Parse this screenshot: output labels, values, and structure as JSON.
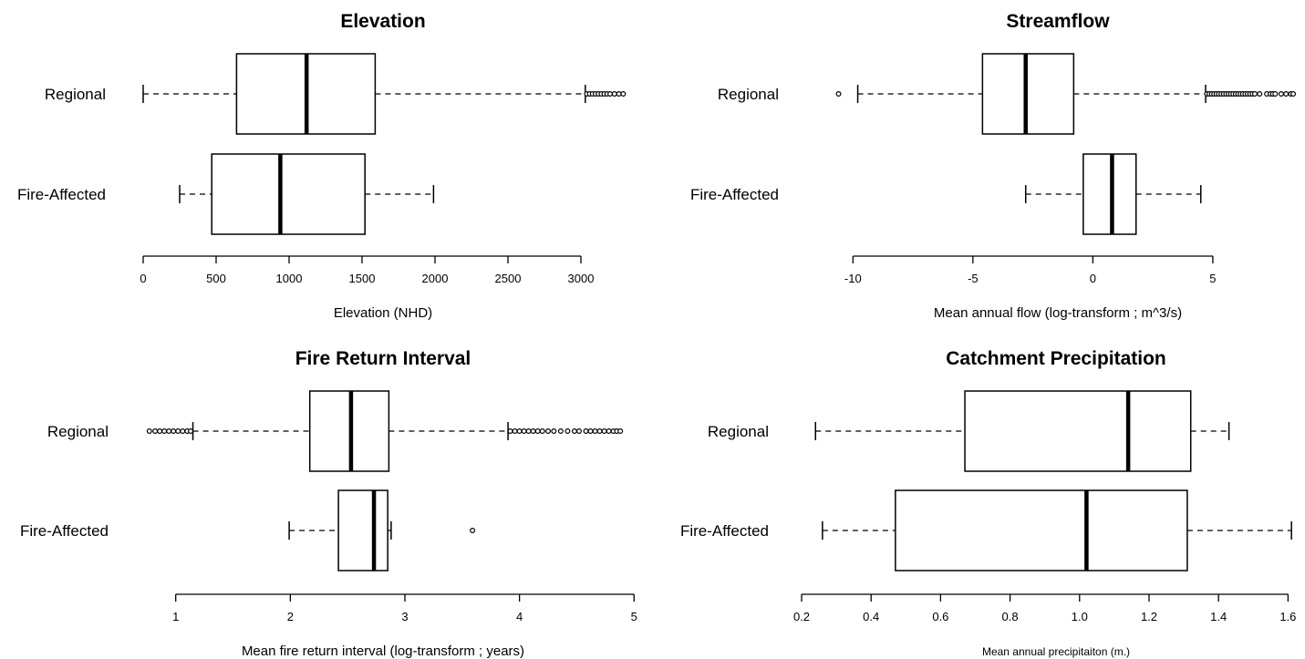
{
  "chart_data": [
    {
      "type": "boxplot",
      "orientation": "horizontal",
      "title": "Elevation",
      "xlabel": "Elevation (NHD)",
      "ylabel": "",
      "xlim": [
        0,
        3300
      ],
      "x_ticks": [
        0,
        500,
        1000,
        1500,
        2000,
        2500,
        3000
      ],
      "x_tick_labels": [
        "0",
        "500",
        "1000",
        "1500",
        "2000",
        "2500",
        "3000"
      ],
      "categories": [
        "Regional",
        "Fire-Affected"
      ],
      "series": [
        {
          "name": "Regional",
          "whisker_low": 0,
          "q1": 640,
          "median": 1120,
          "q3": 1590,
          "whisker_high": 3030,
          "outliers": [
            3040,
            3060,
            3080,
            3100,
            3120,
            3140,
            3160,
            3180,
            3200,
            3230,
            3260,
            3290
          ]
        },
        {
          "name": "Fire-Affected",
          "whisker_low": 250,
          "q1": 470,
          "median": 940,
          "q3": 1520,
          "whisker_high": 1990,
          "outliers": []
        }
      ]
    },
    {
      "type": "boxplot",
      "orientation": "horizontal",
      "title": "Streamflow",
      "xlabel": "Mean annual flow (log-transform ; m^3/s)",
      "ylabel": "",
      "xlim": [
        -11,
        8.5
      ],
      "x_ticks": [
        -10,
        -5,
        0,
        5
      ],
      "x_tick_labels": [
        "-10",
        "-5",
        "0",
        "5"
      ],
      "categories": [
        "Regional",
        "Fire-Affected"
      ],
      "series": [
        {
          "name": "Regional",
          "whisker_low": -9.8,
          "q1": -4.6,
          "median": -2.8,
          "q3": -0.8,
          "whisker_high": 4.7,
          "outliers": [
            -10.6,
            4.75,
            4.85,
            4.95,
            5.05,
            5.15,
            5.25,
            5.35,
            5.45,
            5.55,
            5.65,
            5.75,
            5.85,
            5.95,
            6.05,
            6.15,
            6.25,
            6.35,
            6.45,
            6.55,
            6.65,
            6.75,
            6.95,
            7.25,
            7.4,
            7.5,
            7.6,
            7.85,
            8.05,
            8.25,
            8.35
          ]
        },
        {
          "name": "Fire-Affected",
          "whisker_low": -2.8,
          "q1": -0.4,
          "median": 0.8,
          "q3": 1.8,
          "whisker_high": 4.5,
          "outliers": []
        }
      ]
    },
    {
      "type": "boxplot",
      "orientation": "horizontal",
      "title": "Fire Return Interval",
      "xlabel": "Mean fire return interval (log-transform ; years)",
      "ylabel": "",
      "xlim": [
        0.7,
        4.95
      ],
      "x_ticks": [
        1,
        2,
        3,
        4,
        5
      ],
      "x_tick_labels": [
        "1",
        "2",
        "3",
        "4",
        "5"
      ],
      "categories": [
        "Regional",
        "Fire-Affected"
      ],
      "series": [
        {
          "name": "Regional",
          "whisker_low": 1.15,
          "q1": 2.17,
          "median": 2.53,
          "q3": 2.86,
          "whisker_high": 3.9,
          "outliers": [
            0.77,
            0.82,
            0.86,
            0.9,
            0.94,
            0.98,
            1.02,
            1.06,
            1.1,
            1.13,
            3.92,
            3.96,
            4.0,
            4.04,
            4.08,
            4.12,
            4.16,
            4.2,
            4.25,
            4.3,
            4.36,
            4.42,
            4.48,
            4.52,
            4.58,
            4.62,
            4.66,
            4.7,
            4.74,
            4.78,
            4.82,
            4.85,
            4.88
          ]
        },
        {
          "name": "Fire-Affected",
          "whisker_low": 1.99,
          "q1": 2.42,
          "median": 2.73,
          "q3": 2.85,
          "whisker_high": 2.88,
          "outliers": [
            3.59
          ]
        }
      ]
    },
    {
      "type": "boxplot",
      "orientation": "horizontal",
      "title": "Catchment Precipitation",
      "xlabel": "Mean annual precipitaiton (m.)",
      "ylabel": "",
      "xlim": [
        0.2,
        1.62
      ],
      "x_ticks": [
        0.2,
        0.4,
        0.6,
        0.8,
        1.0,
        1.2,
        1.4,
        1.6
      ],
      "x_tick_labels": [
        "0.2",
        "0.4",
        "0.6",
        "0.8",
        "1.0",
        "1.2",
        "1.4",
        "1.6"
      ],
      "categories": [
        "Regional",
        "Fire-Affected"
      ],
      "series": [
        {
          "name": "Regional",
          "whisker_low": 0.24,
          "q1": 0.67,
          "median": 1.14,
          "q3": 1.32,
          "whisker_high": 1.43,
          "outliers": []
        },
        {
          "name": "Fire-Affected",
          "whisker_low": 0.26,
          "q1": 0.47,
          "median": 1.02,
          "q3": 1.31,
          "whisker_high": 1.61,
          "outliers": []
        }
      ]
    }
  ]
}
